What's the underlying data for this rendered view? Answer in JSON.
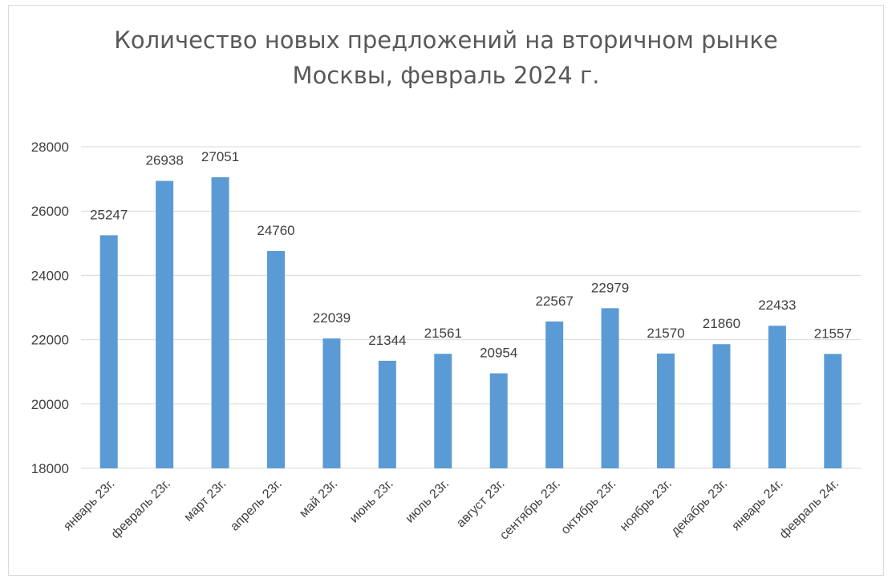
{
  "chart_data": {
    "type": "bar",
    "title_line1": "Количество новых предложений на вторичном рынке",
    "title_line2": "Москвы, февраль 2024 г.",
    "categories": [
      "январь 23г.",
      "февраль 23г.",
      "март 23г.",
      "апрель 23г.",
      "май 23г.",
      "июнь 23г.",
      "июль 23г.",
      "август 23г.",
      "сентябрь 23г.",
      "октябрь 23г.",
      "ноябрь 23г.",
      "декабрь 23г.",
      "январь 24г.",
      "февраль 24г."
    ],
    "values": [
      25247,
      26938,
      27051,
      24760,
      22039,
      21344,
      21561,
      20954,
      22567,
      22979,
      21570,
      21860,
      22433,
      21557
    ],
    "ylim": [
      18000,
      28000
    ],
    "yticks": [
      18000,
      20000,
      22000,
      24000,
      26000,
      28000
    ],
    "grid": true,
    "legend": "none",
    "colors": {
      "bar": "#5b9bd5",
      "grid": "#d9d9d9",
      "text": "#404040"
    }
  }
}
